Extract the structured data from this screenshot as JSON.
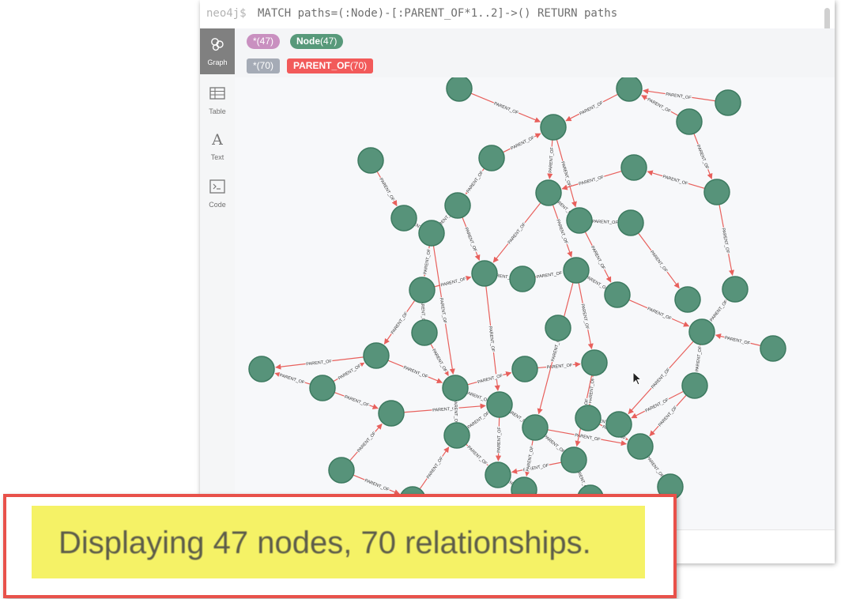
{
  "query": {
    "prompt": "neo4j$",
    "text": "MATCH paths=(:Node)-[:PARENT_OF*1..2]->() RETURN paths"
  },
  "sidebar": {
    "items": [
      {
        "label": "Graph",
        "icon": "graph-icon",
        "active": true
      },
      {
        "label": "Table",
        "icon": "table-icon",
        "active": false
      },
      {
        "label": "Text",
        "icon": "text-icon",
        "active": false
      },
      {
        "label": "Code",
        "icon": "code-icon",
        "active": false
      }
    ]
  },
  "legend": {
    "labels": [
      {
        "name": "*",
        "count": "(47)",
        "color": "#c990c0"
      },
      {
        "name": "Node",
        "count": "(47)",
        "color": "#57997a"
      }
    ],
    "relationships": [
      {
        "name": "*",
        "count": "(70)",
        "color": "#a5abb6"
      },
      {
        "name": "PARENT_OF",
        "count": "(70)",
        "color": "#f25a5a"
      }
    ]
  },
  "graph": {
    "node_color": "#57937a",
    "node_border": "#3d7a60",
    "edge_color": "#e8605c",
    "edge_label": "PARENT_OF"
  },
  "status": {
    "message": "Displaying 47 nodes, 70 relationships."
  },
  "colors": {
    "callout_border": "#e8514a",
    "highlight": "#f5f266"
  }
}
